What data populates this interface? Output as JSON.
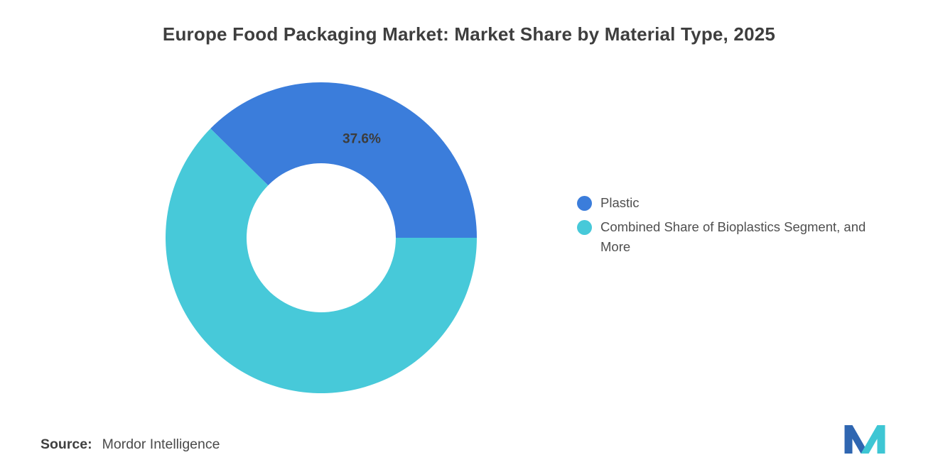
{
  "title": "Europe Food Packaging Market: Market Share by Material Type, 2025",
  "source": {
    "label": "Source:",
    "value": "Mordor Intelligence"
  },
  "chart_data": {
    "type": "pie",
    "donut": true,
    "title": "Europe Food Packaging Market: Market Share by Material Type, 2025",
    "unit": "%",
    "rotation_deg": -45.36,
    "inner_radius_ratio": 0.48,
    "legend_position": "right",
    "background": "#FFFFFF",
    "slices": [
      {
        "label": "Plastic",
        "value": 37.6,
        "color": "#3B7DDB",
        "data_label": "37.6%"
      },
      {
        "label": "Combined Share of Bioplastics Segment, and More",
        "value": 62.4,
        "color": "#47C9D9",
        "data_label": null
      }
    ]
  },
  "logo": {
    "alt": "Mordor Intelligence logo",
    "blue": "#2F66B1",
    "teal": "#3EC6D4"
  }
}
